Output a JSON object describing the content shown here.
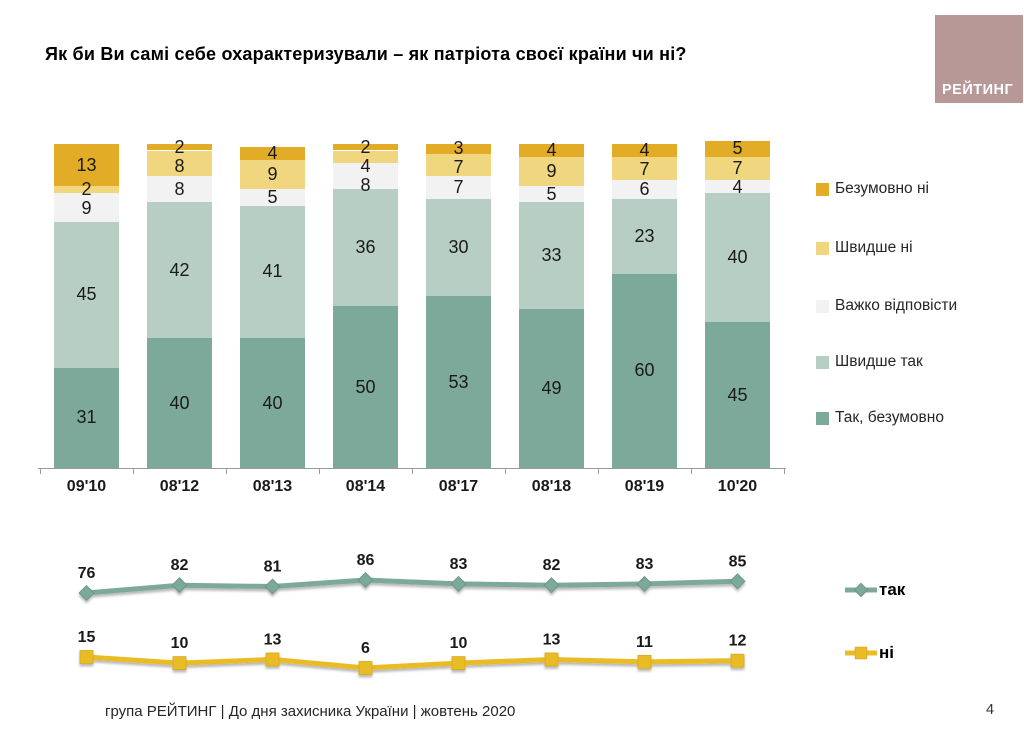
{
  "slide": {
    "title": "Як  би Ви самі себе охарактеризували – як патріота своєї країни чи ні?",
    "logo_text": "РЕЙТИНГ",
    "logo_bg": "#b79896",
    "footer_text": "група РЕЙТИНГ  | До дня захисника України | жовтень 2020",
    "page_number": "4"
  },
  "chart_data": [
    {
      "type": "bar",
      "stacked": true,
      "categories": [
        "09'10",
        "08'12",
        "08'13",
        "08'14",
        "08'17",
        "08'18",
        "08'19",
        "10'20"
      ],
      "series": [
        {
          "name": "Так, безумовно",
          "color": "#7da99b",
          "values": [
            31,
            40,
            40,
            50,
            53,
            49,
            60,
            45
          ]
        },
        {
          "name": "Швидше так",
          "color": "#b7cec5",
          "values": [
            45,
            42,
            41,
            36,
            30,
            33,
            23,
            40
          ]
        },
        {
          "name": "Важко відповісти",
          "color": "#f2f2f2",
          "values": [
            9,
            8,
            5,
            8,
            7,
            5,
            6,
            4
          ]
        },
        {
          "name": "Швидше ні",
          "color": "#f0d67e",
          "values": [
            2,
            8,
            9,
            4,
            7,
            9,
            7,
            7
          ]
        },
        {
          "name": "Безумовно ні",
          "color": "#e3ac26",
          "values": [
            13,
            2,
            4,
            2,
            3,
            4,
            4,
            5
          ]
        }
      ],
      "legend": [
        {
          "label": "Безумовно ні",
          "color": "#e3ac26"
        },
        {
          "label": "Швидше ні",
          "color": "#f0d67e"
        },
        {
          "label": "Важко відповісти",
          "color": "#f2f2f2"
        },
        {
          "label": "Швидше так",
          "color": "#b7cec5"
        },
        {
          "label": "Так, безумовно",
          "color": "#7da99b"
        }
      ],
      "ylim": [
        0,
        101
      ],
      "grid": false,
      "legend_position": "right"
    },
    {
      "type": "line",
      "categories": [
        "09'10",
        "08'12",
        "08'13",
        "08'14",
        "08'17",
        "08'18",
        "08'19",
        "10'20"
      ],
      "series": [
        {
          "name": "так",
          "color": "#7da99b",
          "marker": "diamond",
          "values": [
            76,
            82,
            81,
            86,
            83,
            82,
            83,
            85
          ]
        },
        {
          "name": "ні",
          "color": "#e9bc25",
          "marker": "square",
          "values": [
            15,
            10,
            13,
            6,
            10,
            13,
            11,
            12
          ]
        }
      ],
      "grid": false,
      "legend_position": "right"
    }
  ]
}
